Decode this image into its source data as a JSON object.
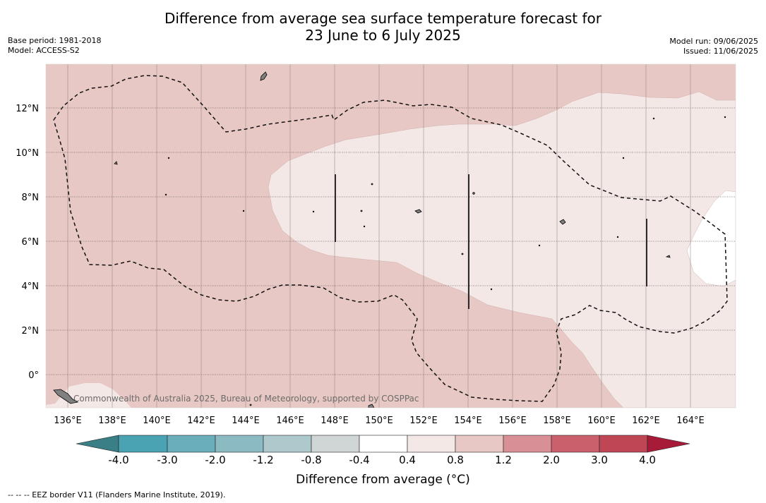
{
  "title": {
    "line1": "Difference from average sea surface temperature forecast for",
    "line2": "23 June to 6 July 2025"
  },
  "meta_left": {
    "base_period": "Base period: 1981-2018",
    "model": "Model: ACCESS-S2"
  },
  "meta_right": {
    "model_run": "Model run: 09/06/2025",
    "issued": "Issued: 11/06/2025"
  },
  "map": {
    "x_axis_labels": [
      "136°E",
      "138°E",
      "140°E",
      "142°E",
      "144°E",
      "146°E",
      "148°E",
      "150°E",
      "152°E",
      "154°E",
      "156°E",
      "158°E",
      "160°E",
      "162°E",
      "164°E"
    ],
    "y_axis_labels": [
      "12°N",
      "10°N",
      "8°N",
      "6°N",
      "4°N",
      "2°N",
      "0°"
    ],
    "credit": "Commonwealth of Australia 2025, Bureau of Meteorology, supported by COSPPac",
    "colors": {
      "band_0.8_1.2": "#e8c8c4",
      "band_0.4_0.8": "#f4e8e6",
      "band_-0.4_0.4": "#ffffff",
      "land": "#808080",
      "grid": "#7a7a7a"
    }
  },
  "colorbar": {
    "title": "Difference from average (°C)",
    "labels": [
      "-4.0",
      "-3.0",
      "-2.0",
      "-1.2",
      "-0.8",
      "-0.4",
      "0.4",
      "0.8",
      "1.2",
      "2.0",
      "3.0",
      "4.0"
    ],
    "colors": [
      "#3b7f86",
      "#4aa3b3",
      "#6aaebb",
      "#8cbac3",
      "#adc9cc",
      "#d0d5d6",
      "#ffffff",
      "#f4e8e6",
      "#e8c8c4",
      "#d98f96",
      "#c9606c",
      "#bf4655",
      "#a81b38"
    ]
  },
  "footnote": "--  --  -- EEZ border V11 (Flanders Marine Institute, 2019)."
}
